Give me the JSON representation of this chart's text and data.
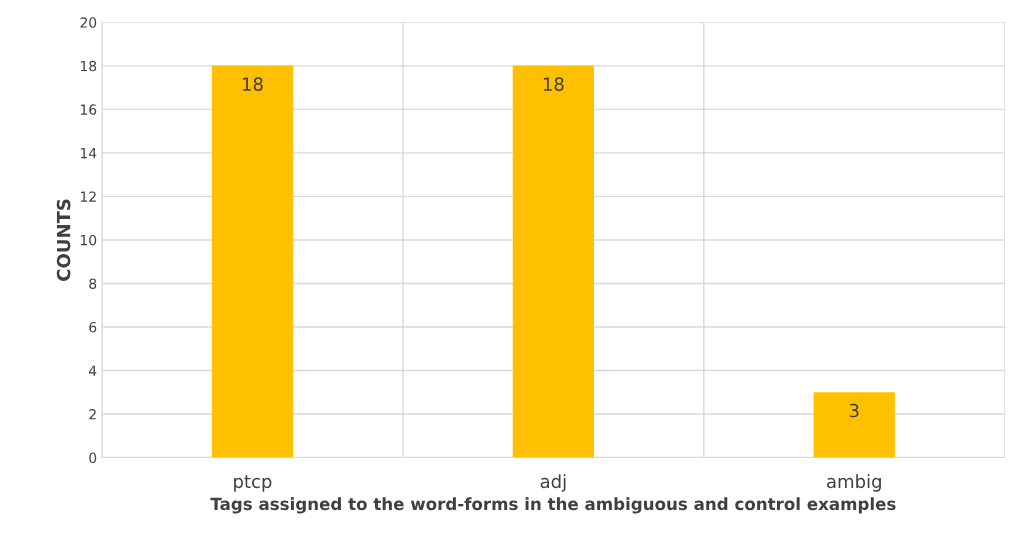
{
  "chart_data": {
    "type": "bar",
    "xlabel": "Tags assigned to the word-forms in the ambiguous and control examples",
    "ylabel": "COUNTS",
    "categories": [
      "ptcp",
      "adj",
      "ambig"
    ],
    "values": [
      18,
      18,
      3
    ],
    "color": "#ffc000",
    "ylim": [
      0,
      20
    ],
    "yticks": [
      0,
      2,
      4,
      6,
      8,
      10,
      12,
      14,
      16,
      18,
      20
    ],
    "grid": true,
    "data_labels": true
  }
}
